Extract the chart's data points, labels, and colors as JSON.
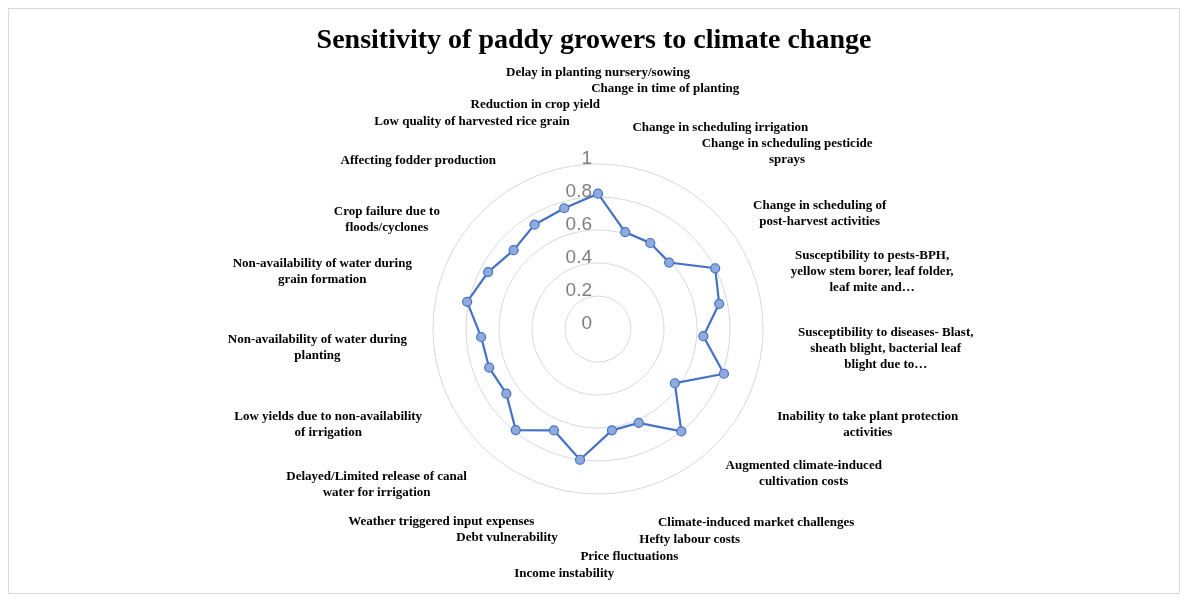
{
  "chart_data": {
    "type": "radar",
    "title": "Sensitivity of paddy growers to climate change",
    "categories": [
      "Delay in planting nursery/sowing",
      "Change in time of planting",
      "Change in scheduling irrigation",
      "Change in scheduling pesticide sprays",
      "Change in scheduling of post-harvest activities",
      "Susceptibility to pests-BPH, yellow stem borer, leaf folder, leaf mite and…",
      "Susceptibility to diseases- Blast, sheath blight, bacterial leaf blight due to…",
      "Inability to take plant protection activities",
      "Augmented climate-induced cultivation costs",
      "Climate-induced market challenges",
      "Hefty labour costs",
      "Price fluctuations",
      "Income instability",
      "Debt vulnerability",
      "Weather triggered input expenses",
      "Delayed/Limited release of canal water for irrigation",
      "Low yields due to non-availability of irrigation",
      "Non-availability of water during planting",
      "Non-availability of water during grain formation",
      "Crop failure due to floods/cyclones",
      "Affecting fodder production",
      "Low quality of harvested rice grain",
      "Reduction in crop yield"
    ],
    "series": [
      {
        "color": "#4472c4",
        "values": [
          0.82,
          0.61,
          0.61,
          0.59,
          0.8,
          0.75,
          0.64,
          0.81,
          0.57,
          0.8,
          0.62,
          0.62,
          0.8,
          0.67,
          0.79,
          0.68,
          0.7,
          0.71,
          0.81,
          0.75,
          0.7,
          0.74,
          0.76
        ]
      }
    ],
    "ylim": [
      0,
      1
    ],
    "yticks": [
      0,
      0.2,
      0.4,
      0.6,
      0.8,
      1
    ],
    "grid": true,
    "marker": "circle",
    "legend": false
  }
}
